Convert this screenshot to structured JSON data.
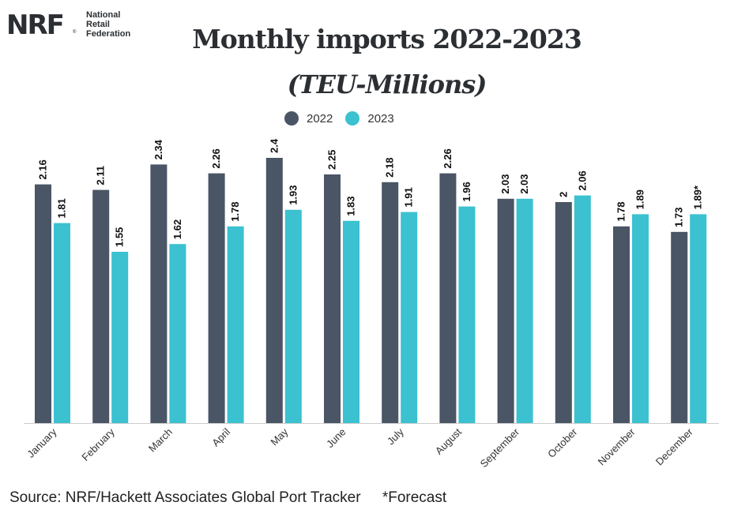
{
  "logo": {
    "mark": "NRF",
    "reg": "®",
    "lines": [
      "National",
      "Retail",
      "Federation"
    ]
  },
  "title": "Monthly imports 2022-2023",
  "subtitle": "(TEU-Millions)",
  "colors": {
    "series_2022": "#4a5565",
    "series_2023": "#3bc1d0",
    "axis": "#cccccc"
  },
  "chart_data": {
    "type": "bar",
    "title": "Monthly imports 2022-2023",
    "subtitle": "(TEU-Millions)",
    "categories": [
      "January",
      "February",
      "March",
      "April",
      "May",
      "June",
      "July",
      "August",
      "September",
      "October",
      "November",
      "December"
    ],
    "series": [
      {
        "name": "2022",
        "values": [
          2.16,
          2.11,
          2.34,
          2.26,
          2.4,
          2.25,
          2.18,
          2.26,
          2.03,
          2,
          1.78,
          1.73
        ],
        "labels": [
          "2.16",
          "2.11",
          "2.34",
          "2.26",
          "2.4",
          "2.25",
          "2.18",
          "2.26",
          "2.03",
          "2",
          "1.78",
          "1.73"
        ]
      },
      {
        "name": "2023",
        "values": [
          1.81,
          1.55,
          1.62,
          1.78,
          1.93,
          1.83,
          1.91,
          1.96,
          2.03,
          2.06,
          1.89,
          1.89
        ],
        "labels": [
          "1.81",
          "1.55",
          "1.62",
          "1.78",
          "1.93",
          "1.83",
          "1.91",
          "1.96",
          "2.03",
          "2.06",
          "1.89",
          "1.89*"
        ]
      }
    ],
    "ylim": [
      0,
      2.4
    ],
    "legend_position": "top-center",
    "grid": false
  },
  "source": {
    "text": "Source: NRF/Hackett Associates Global Port Tracker",
    "note": "*Forecast"
  }
}
